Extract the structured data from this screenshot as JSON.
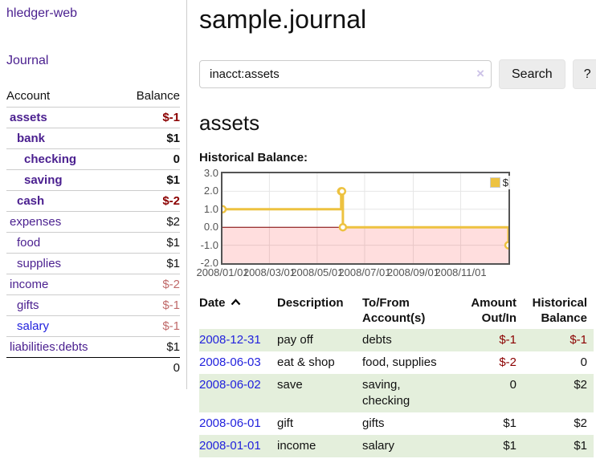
{
  "app": {
    "title": "hledger-web"
  },
  "sidebar": {
    "journal_link": "Journal",
    "accounts": {
      "headers": [
        "Account",
        "Balance"
      ],
      "rows": [
        {
          "name": "assets",
          "balance": "$-1",
          "depth": 0,
          "bold": true,
          "amount": "neg",
          "link": "purple"
        },
        {
          "name": "bank",
          "balance": "$1",
          "depth": 1,
          "bold": true,
          "amount": "pos",
          "link": "purple"
        },
        {
          "name": "checking",
          "balance": "0",
          "depth": 2,
          "bold": true,
          "amount": "pos",
          "link": "purple"
        },
        {
          "name": "saving",
          "balance": "$1",
          "depth": 2,
          "bold": true,
          "amount": "pos",
          "link": "purple"
        },
        {
          "name": "cash",
          "balance": "$-2",
          "depth": 1,
          "bold": true,
          "amount": "neg",
          "link": "purple"
        },
        {
          "name": "expenses",
          "balance": "$2",
          "depth": 0,
          "bold": false,
          "amount": "pos",
          "link": "purple"
        },
        {
          "name": "food",
          "balance": "$1",
          "depth": 1,
          "bold": false,
          "amount": "pos",
          "link": "purple"
        },
        {
          "name": "supplies",
          "balance": "$1",
          "depth": 1,
          "bold": false,
          "amount": "pos",
          "link": "purple"
        },
        {
          "name": "income",
          "balance": "$-2",
          "depth": 0,
          "bold": false,
          "amount": "neg-light",
          "link": "purple"
        },
        {
          "name": "gifts",
          "balance": "$-1",
          "depth": 1,
          "bold": false,
          "amount": "neg-light",
          "link": "purple"
        },
        {
          "name": "salary",
          "balance": "$-1",
          "depth": 1,
          "bold": false,
          "amount": "neg-light",
          "link": "blue"
        },
        {
          "name": "liabilities:debts",
          "balance": "$1",
          "depth": 0,
          "bold": false,
          "amount": "pos",
          "link": "purple"
        }
      ],
      "total": "0"
    }
  },
  "main": {
    "title": "sample.journal",
    "search": {
      "value": "inacct:assets",
      "clear_icon": "×",
      "button": "Search",
      "help": "?"
    },
    "account_heading": "assets",
    "chart_title": "Historical Balance:"
  },
  "chart_data": {
    "type": "line",
    "title": "Historical Balance of assets",
    "legend": [
      {
        "label": "$",
        "color": "#edc240"
      }
    ],
    "legend_position": "top-right",
    "grid": true,
    "ylim": [
      -2,
      3
    ],
    "y_ticks": [
      3.0,
      2.0,
      1.0,
      0.0,
      -1.0,
      -2.0
    ],
    "x_ticks": [
      {
        "label": "2008/01/01",
        "t": 0.0
      },
      {
        "label": "2008/03/01",
        "t": 0.164
      },
      {
        "label": "2008/05/01",
        "t": 0.331
      },
      {
        "label": "2008/07/01",
        "t": 0.497
      },
      {
        "label": "2008/09/01",
        "t": 0.667
      },
      {
        "label": "2008/11/01",
        "t": 0.833
      }
    ],
    "series": [
      {
        "name": "$",
        "color": "#edc240",
        "steps": true,
        "points": [
          {
            "date": "2008-01-01",
            "t": 0.0,
            "y": 1
          },
          {
            "date": "2008-06-01",
            "t": 0.415,
            "y": 2
          },
          {
            "date": "2008-06-02",
            "t": 0.418,
            "y": 2
          },
          {
            "date": "2008-06-03",
            "t": 0.421,
            "y": 0
          },
          {
            "date": "2008-12-31",
            "t": 1.0,
            "y": -1
          }
        ]
      }
    ],
    "negative_region_fill": "#fbd9d9",
    "zero_line_color": "#800000",
    "grid_color": "#e6e6e6",
    "border_color": "#545454"
  },
  "register": {
    "headers": [
      {
        "label": "Date",
        "align": "left",
        "sort": "asc"
      },
      {
        "label": "Description",
        "align": "left"
      },
      {
        "label": "To/From\nAccount(s)",
        "align": "left"
      },
      {
        "label": "Amount\nOut/In",
        "align": "right"
      },
      {
        "label": "Historical\nBalance",
        "align": "right"
      }
    ],
    "rows": [
      {
        "date": "2008-12-31",
        "description": "pay off",
        "accounts": "debts",
        "amount": "$-1",
        "amount_neg": true,
        "balance": "$-1",
        "balance_neg": true,
        "shaded": true
      },
      {
        "date": "2008-06-03",
        "description": "eat & shop",
        "accounts": "food, supplies",
        "amount": "$-2",
        "amount_neg": true,
        "balance": "0",
        "balance_neg": false,
        "shaded": false
      },
      {
        "date": "2008-06-02",
        "description": "save",
        "accounts": "saving,\nchecking",
        "amount": "0",
        "amount_neg": false,
        "balance": "$2",
        "balance_neg": false,
        "shaded": true
      },
      {
        "date": "2008-06-01",
        "description": "gift",
        "accounts": "gifts",
        "amount": "$1",
        "amount_neg": false,
        "balance": "$2",
        "balance_neg": false,
        "shaded": false
      },
      {
        "date": "2008-01-01",
        "description": "income",
        "accounts": "salary",
        "amount": "$1",
        "amount_neg": false,
        "balance": "$1",
        "balance_neg": false,
        "shaded": true
      }
    ]
  },
  "colors": {
    "link_purple": "#4a1f8f",
    "link_blue": "#2222dd",
    "negative_strong": "#8b0000",
    "negative_light": "#c06a6a",
    "row_shade_green": "#e4efdc",
    "accent_gold": "#edc240"
  }
}
